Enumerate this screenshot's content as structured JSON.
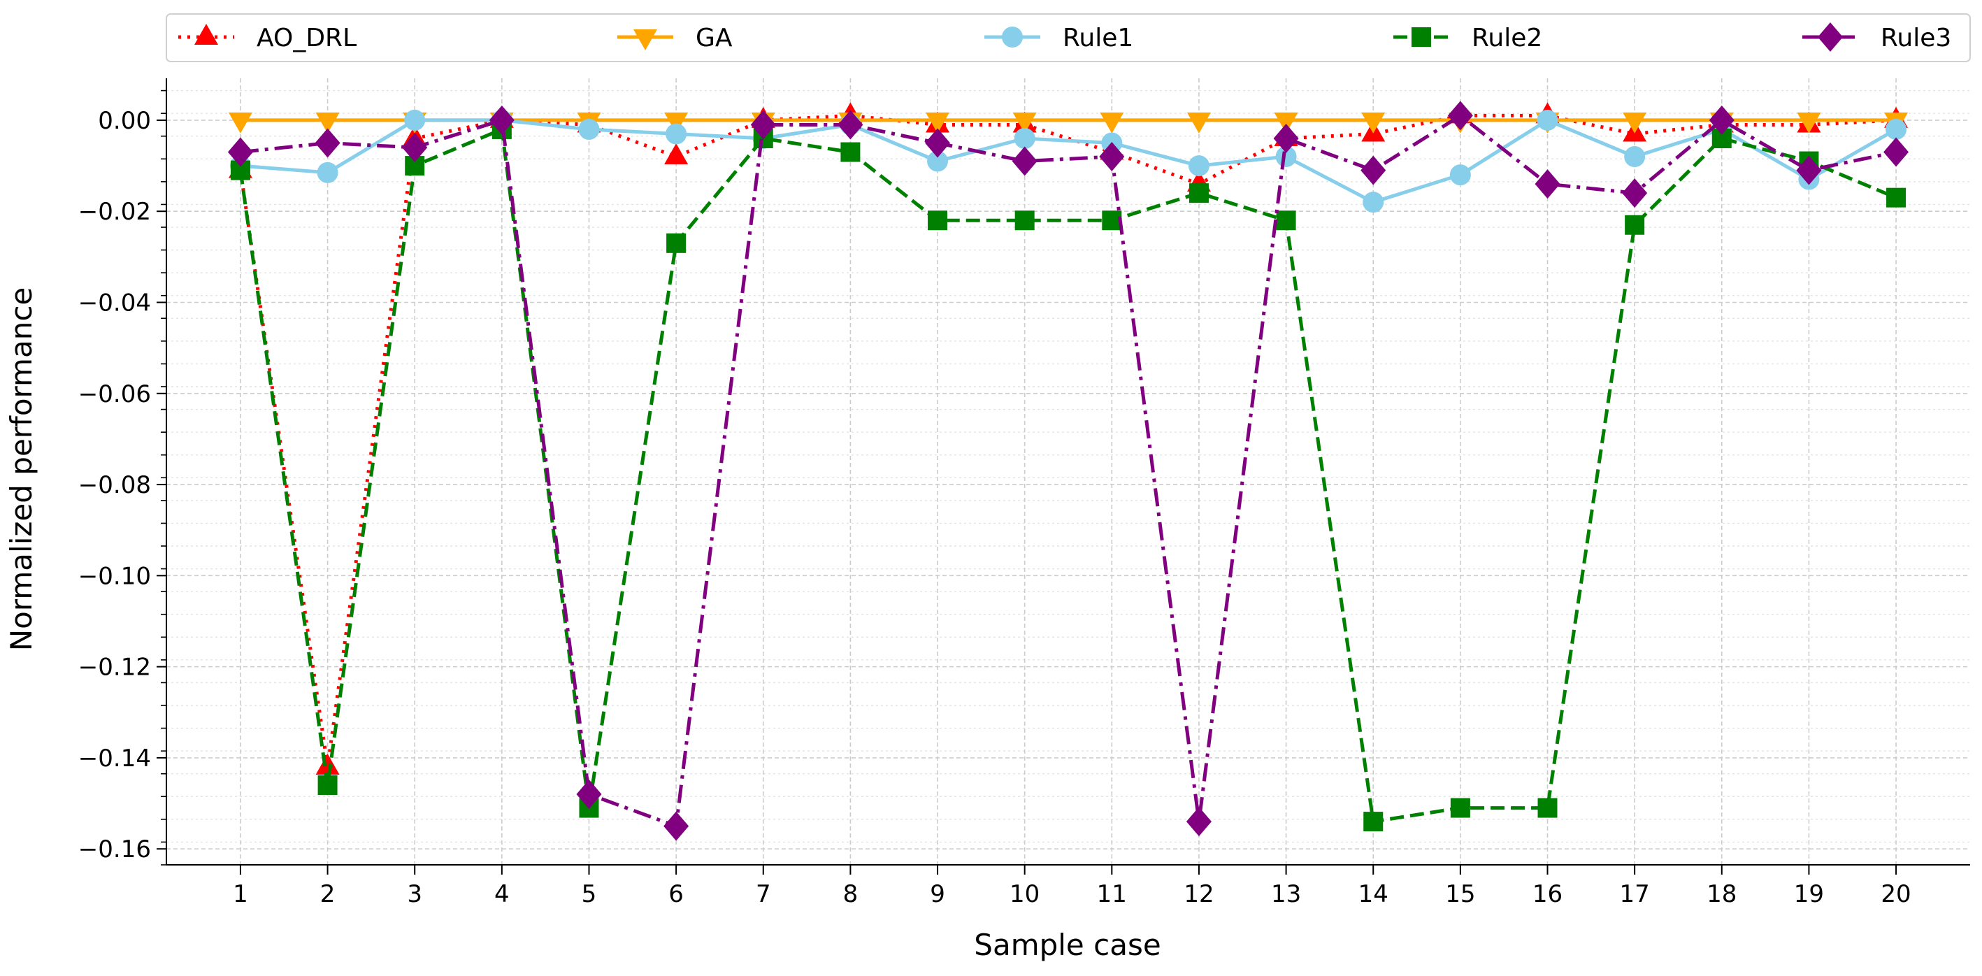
{
  "chart_data": {
    "type": "line",
    "title": "",
    "xlabel": "Sample case",
    "ylabel": "Normalized performance",
    "x": [
      1,
      2,
      3,
      4,
      5,
      6,
      7,
      8,
      9,
      10,
      11,
      12,
      13,
      14,
      15,
      16,
      17,
      18,
      19,
      20
    ],
    "xticks": [
      "1",
      "2",
      "3",
      "4",
      "5",
      "6",
      "7",
      "8",
      "9",
      "10",
      "11",
      "12",
      "13",
      "14",
      "15",
      "16",
      "17",
      "18",
      "19",
      "20"
    ],
    "xlim": [
      0.15,
      20.85
    ],
    "ylim": [
      -0.1635,
      0.0092
    ],
    "yticks": [
      0.0,
      -0.02,
      -0.04,
      -0.06,
      -0.08,
      -0.1,
      -0.12,
      -0.14,
      -0.16
    ],
    "ytick_labels": [
      "0.00",
      "−0.02",
      "−0.04",
      "−0.06",
      "−0.08",
      "−0.10",
      "−0.12",
      "−0.14",
      "−0.16"
    ],
    "grid": true,
    "legend_position": "top",
    "series": [
      {
        "name": "AO_DRL",
        "color": "#ff0000",
        "dash": "dotted",
        "marker": "triangle-up",
        "values": [
          -0.011,
          -0.142,
          -0.004,
          0.0,
          -0.001,
          -0.008,
          0.0,
          0.001,
          -0.001,
          -0.001,
          -0.007,
          -0.014,
          -0.004,
          -0.003,
          0.001,
          0.001,
          -0.003,
          -0.001,
          -0.001,
          0.0
        ]
      },
      {
        "name": "GA",
        "color": "#ffa500",
        "dash": "solid",
        "marker": "triangle-down",
        "values": [
          0,
          0,
          0,
          0,
          0,
          0,
          0,
          0,
          0,
          0,
          0,
          0,
          0,
          0,
          0,
          0,
          0,
          0,
          0,
          0
        ]
      },
      {
        "name": "Rule1",
        "color": "#87ceeb",
        "dash": "solid",
        "marker": "circle",
        "values": [
          -0.01,
          -0.0115,
          0.0,
          0.0,
          -0.002,
          -0.003,
          -0.004,
          -0.001,
          -0.009,
          -0.004,
          -0.005,
          -0.01,
          -0.008,
          -0.018,
          -0.012,
          0.0,
          -0.008,
          -0.002,
          -0.013,
          -0.002
        ]
      },
      {
        "name": "Rule2",
        "color": "#008000",
        "dash": "dashed",
        "marker": "square",
        "values": [
          -0.011,
          -0.146,
          -0.01,
          -0.002,
          -0.151,
          -0.027,
          -0.004,
          -0.007,
          -0.022,
          -0.022,
          -0.022,
          -0.016,
          -0.022,
          -0.154,
          -0.151,
          -0.151,
          -0.023,
          -0.004,
          -0.009,
          -0.017
        ]
      },
      {
        "name": "Rule3",
        "color": "#800080",
        "dash": "dashdot",
        "marker": "diamond",
        "values": [
          -0.007,
          -0.005,
          -0.006,
          0.0,
          -0.148,
          -0.155,
          -0.001,
          -0.001,
          -0.005,
          -0.009,
          -0.008,
          -0.154,
          -0.004,
          -0.011,
          0.001,
          -0.014,
          -0.016,
          0.0,
          -0.011,
          -0.007
        ]
      }
    ]
  }
}
